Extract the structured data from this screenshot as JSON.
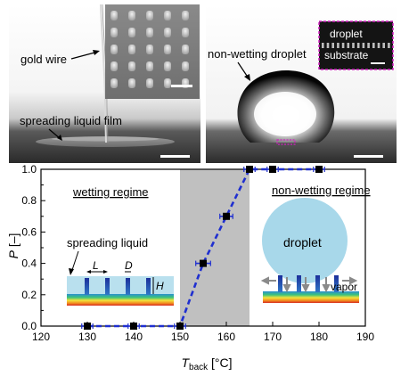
{
  "photos": {
    "left": {
      "label_gold_wire": "gold wire",
      "label_film": "spreading liquid film"
    },
    "right": {
      "label_droplet": "non-wetting droplet",
      "inset_droplet": "droplet",
      "inset_substrate": "substrate"
    }
  },
  "annotations": {
    "wetting_regime": "wetting regime",
    "non_wetting_regime": "non-wetting regime",
    "spreading_liquid": "spreading liquid",
    "L": "L",
    "D": "D",
    "H": "H",
    "droplet": "droplet",
    "vapor": "vapor"
  },
  "chart_data": {
    "type": "line",
    "title": "",
    "xlabel_main": "T",
    "xlabel_sub": "back",
    "xlabel_unit": " [°C]",
    "ylabel_main": "P",
    "ylabel_unit": " [–]",
    "xlim": [
      120,
      190
    ],
    "ylim": [
      0,
      1.0
    ],
    "xticks": [
      120,
      130,
      140,
      150,
      160,
      170,
      180,
      190
    ],
    "yticks": [
      0.0,
      0.2,
      0.4,
      0.6,
      0.8,
      1.0
    ],
    "yticks_minor": [
      0.1,
      0.3,
      0.5,
      0.7,
      0.9
    ],
    "shaded_region": [
      150,
      165
    ],
    "line_color": "#1f2fd0",
    "marker_color": "#000000",
    "series": [
      {
        "x": [
          130,
          140,
          150,
          155,
          160,
          165,
          170,
          180
        ],
        "y": [
          0.0,
          0.0,
          0.0,
          0.4,
          0.7,
          1.0,
          1.0,
          1.0
        ],
        "xerr": [
          1.2,
          1.2,
          1.2,
          1.6,
          1.4,
          1.2,
          1.2,
          1.2
        ]
      }
    ]
  }
}
